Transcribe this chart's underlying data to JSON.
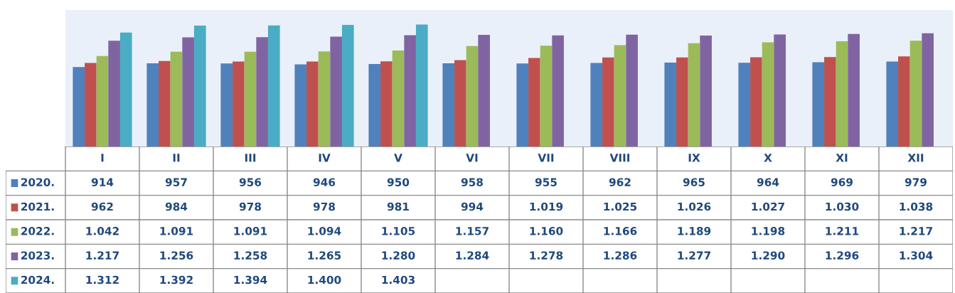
{
  "chart_data": {
    "type": "bar",
    "categories": [
      "I",
      "II",
      "III",
      "IV",
      "V",
      "VI",
      "VII",
      "VIII",
      "IX",
      "X",
      "XI",
      "XII"
    ],
    "series": [
      {
        "name": "2020.",
        "color": "#4f81bd",
        "values": [
          914,
          957,
          956,
          946,
          950,
          958,
          955,
          962,
          965,
          964,
          969,
          979
        ],
        "value_labels": [
          "914",
          "957",
          "956",
          "946",
          "950",
          "958",
          "955",
          "962",
          "965",
          "964",
          "969",
          "979"
        ]
      },
      {
        "name": "2021.",
        "color": "#c0504d",
        "values": [
          962,
          984,
          978,
          978,
          981,
          994,
          1019,
          1025,
          1026,
          1027,
          1030,
          1038
        ],
        "value_labels": [
          "962",
          "984",
          "978",
          "978",
          "981",
          "994",
          "1.019",
          "1.025",
          "1.026",
          "1.027",
          "1.030",
          "1.038"
        ]
      },
      {
        "name": "2022.",
        "color": "#9bbb59",
        "values": [
          1042,
          1091,
          1091,
          1094,
          1105,
          1157,
          1160,
          1166,
          1189,
          1198,
          1211,
          1217
        ],
        "value_labels": [
          "1.042",
          "1.091",
          "1.091",
          "1.094",
          "1.105",
          "1.157",
          "1.160",
          "1.166",
          "1.189",
          "1.198",
          "1.211",
          "1.217"
        ]
      },
      {
        "name": "2023.",
        "color": "#8064a2",
        "values": [
          1217,
          1256,
          1258,
          1265,
          1280,
          1284,
          1278,
          1286,
          1277,
          1290,
          1296,
          1304
        ],
        "value_labels": [
          "1.217",
          "1.256",
          "1.258",
          "1.265",
          "1.280",
          "1.284",
          "1.278",
          "1.286",
          "1.277",
          "1.290",
          "1.296",
          "1.304"
        ]
      },
      {
        "name": "2024.",
        "color": "#4bacc6",
        "values": [
          1312,
          1392,
          1394,
          1400,
          1403,
          null,
          null,
          null,
          null,
          null,
          null,
          null
        ],
        "value_labels": [
          "1.312",
          "1.392",
          "1.394",
          "1.400",
          "1.403",
          null,
          null,
          null,
          null,
          null,
          null,
          null
        ]
      }
    ],
    "legend": "bottom left"
  }
}
